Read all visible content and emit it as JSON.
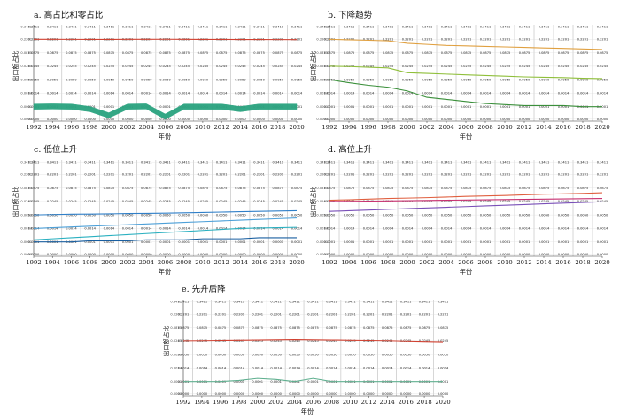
{
  "chart_data": [
    {
      "type": "line",
      "title": "a. 高占比和零占比",
      "xlabel": "年份",
      "ylabel": "出口额占比",
      "x": [
        1992,
        1994,
        1996,
        1998,
        2000,
        2002,
        2004,
        2006,
        2008,
        2010,
        2012,
        2014,
        2016,
        2018,
        2020
      ],
      "ylim": [
        0,
        0.3411
      ],
      "yticks": [
        0.3411,
        0.2201,
        0.0875,
        0.0245,
        0.005,
        0.0014,
        0.0001,
        0
      ],
      "series": [
        {
          "color": "#d04030",
          "values": [
            0.2201,
            0.2201,
            0.2198,
            0.219,
            0.2195,
            0.22,
            0.2205,
            0.221,
            0.22,
            0.2195,
            0.219,
            0.2185,
            0.218,
            0.2178,
            0.2175
          ]
        },
        {
          "color": "#2aa37f",
          "band": true,
          "values": [
            0.0001,
            0.00012,
            0.0001,
            8e-05,
            3e-05,
            0.0001,
            0.00012,
            2e-05,
            0.0001,
            0.0001,
            0.0001,
            8e-05,
            0.0001,
            0.0001,
            0.0001
          ]
        }
      ]
    },
    {
      "type": "line",
      "title": "b. 下降趋势",
      "xlabel": "年份",
      "ylabel": "出口额占比",
      "x": [
        1992,
        1994,
        1996,
        1998,
        2000,
        2002,
        2004,
        2006,
        2008,
        2010,
        2012,
        2014,
        2016,
        2018,
        2020
      ],
      "ylim": [
        0,
        0.3411
      ],
      "yticks": [
        0.3411,
        0.2201,
        0.0875,
        0.0245,
        0.005,
        0.0014,
        0.0001,
        0
      ],
      "series": [
        {
          "color": "#e0a040",
          "values": [
            0.2201,
            0.215,
            0.21,
            0.205,
            0.18,
            0.17,
            0.16,
            0.155,
            0.15,
            0.145,
            0.14,
            0.135,
            0.13,
            0.125,
            0.12
          ]
        },
        {
          "color": "#8fbf3a",
          "values": [
            0.0245,
            0.024,
            0.023,
            0.022,
            0.015,
            0.014,
            0.013,
            0.012,
            0.011,
            0.01,
            0.009,
            0.0085,
            0.008,
            0.007,
            0.0065
          ]
        },
        {
          "color": "#3a8f3a",
          "values": [
            0.005,
            0.0042,
            0.0035,
            0.003,
            0.002,
            0.001,
            0.0008,
            0.0006,
            0.0004,
            0.0003,
            0.0002,
            0.0002,
            0.0002,
            0.0001,
            0.0001
          ]
        }
      ]
    },
    {
      "type": "line",
      "title": "c. 低位上升",
      "xlabel": "年份",
      "ylabel": "出口额占比",
      "x": [
        1992,
        1994,
        1996,
        1998,
        2000,
        2002,
        2004,
        2006,
        2008,
        2010,
        2012,
        2014,
        2016,
        2018,
        2020
      ],
      "ylim": [
        0,
        0.3411
      ],
      "yticks": [
        0.3411,
        0.2201,
        0.0875,
        0.0245,
        0.005,
        0.0014,
        0.0001,
        0
      ],
      "series": [
        {
          "color": "#2f7fc8",
          "values": [
            0.005,
            0.0055,
            0.006,
            0.0062,
            0.0065,
            0.007,
            0.0072,
            0.0075,
            0.008,
            0.0085,
            0.009,
            0.0095,
            0.01,
            0.0105,
            0.011
          ]
        },
        {
          "color": "#4da0d8",
          "values": [
            0.0014,
            0.0016,
            0.0018,
            0.002,
            0.0022,
            0.0024,
            0.0026,
            0.0028,
            0.003,
            0.0032,
            0.0034,
            0.0036,
            0.0038,
            0.004,
            0.0042
          ]
        },
        {
          "color": "#2ab0c0",
          "values": [
            0.0003,
            0.0004,
            0.0005,
            0.0006,
            0.0007,
            0.0008,
            0.0009,
            0.001,
            0.0011,
            0.0012,
            0.0013,
            0.0014,
            0.0015,
            0.0016,
            0.0017
          ]
        },
        {
          "color": "#1a5fa0",
          "values": [
            0.0001,
            0.0001,
            0.0001,
            0.0002,
            0.0002,
            0.0002,
            0.0003,
            0.0003,
            0.0003,
            0.0004,
            0.0004,
            0.0004,
            0.0005,
            0.0005,
            0.0005
          ]
        }
      ]
    },
    {
      "type": "line",
      "title": "d. 高位上升",
      "xlabel": "年份",
      "ylabel": "出口额占比",
      "x": [
        1992,
        1994,
        1996,
        1998,
        2000,
        2002,
        2004,
        2006,
        2008,
        2010,
        2012,
        2014,
        2016,
        2018,
        2020
      ],
      "ylim": [
        0,
        0.3411
      ],
      "yticks": [
        0.3411,
        0.2201,
        0.0875,
        0.0245,
        0.005,
        0.0014,
        0.0001,
        0
      ],
      "series": [
        {
          "color": "#c83070",
          "values": [
            0.0245,
            0.025,
            0.026,
            0.027,
            0.028,
            0.029,
            0.03,
            0.031,
            0.032,
            0.033,
            0.034,
            0.035,
            0.036,
            0.037,
            0.038
          ]
        },
        {
          "color": "#e06040",
          "values": [
            0.03,
            0.032,
            0.035,
            0.038,
            0.04,
            0.042,
            0.045,
            0.048,
            0.05,
            0.052,
            0.055,
            0.058,
            0.06,
            0.062,
            0.065
          ]
        },
        {
          "color": "#7a50b8",
          "values": [
            0.01,
            0.011,
            0.012,
            0.013,
            0.014,
            0.015,
            0.016,
            0.017,
            0.018,
            0.019,
            0.02,
            0.021,
            0.022,
            0.023,
            0.024
          ]
        }
      ]
    },
    {
      "type": "line",
      "title": "e. 先升后降",
      "xlabel": "年份",
      "ylabel": "出口额占比",
      "x": [
        1992,
        1994,
        1996,
        1998,
        2000,
        2002,
        2004,
        2006,
        2008,
        2010,
        2012,
        2014,
        2016,
        2018,
        2020
      ],
      "ylim": [
        0,
        0.3411
      ],
      "yticks": [
        0.3411,
        0.2201,
        0.0875,
        0.0245,
        0.005,
        0.0014,
        0.0001,
        0
      ],
      "series": [
        {
          "color": "#d04030",
          "values": [
            0.0245,
            0.025,
            0.026,
            0.027,
            0.028,
            0.029,
            0.03,
            0.029,
            0.028,
            0.027,
            0.026,
            0.025,
            0.024,
            0.0235,
            0.023
          ]
        },
        {
          "color": "#60b090",
          "values": [
            0.0001,
            0.0001,
            0.0001,
            0.0002,
            0.0004,
            0.0003,
            0.0001,
            0.0004,
            0.0001,
            0.0001,
            0.0001,
            0.0001,
            0.0001,
            0.0001,
            0.0001
          ]
        }
      ]
    }
  ]
}
